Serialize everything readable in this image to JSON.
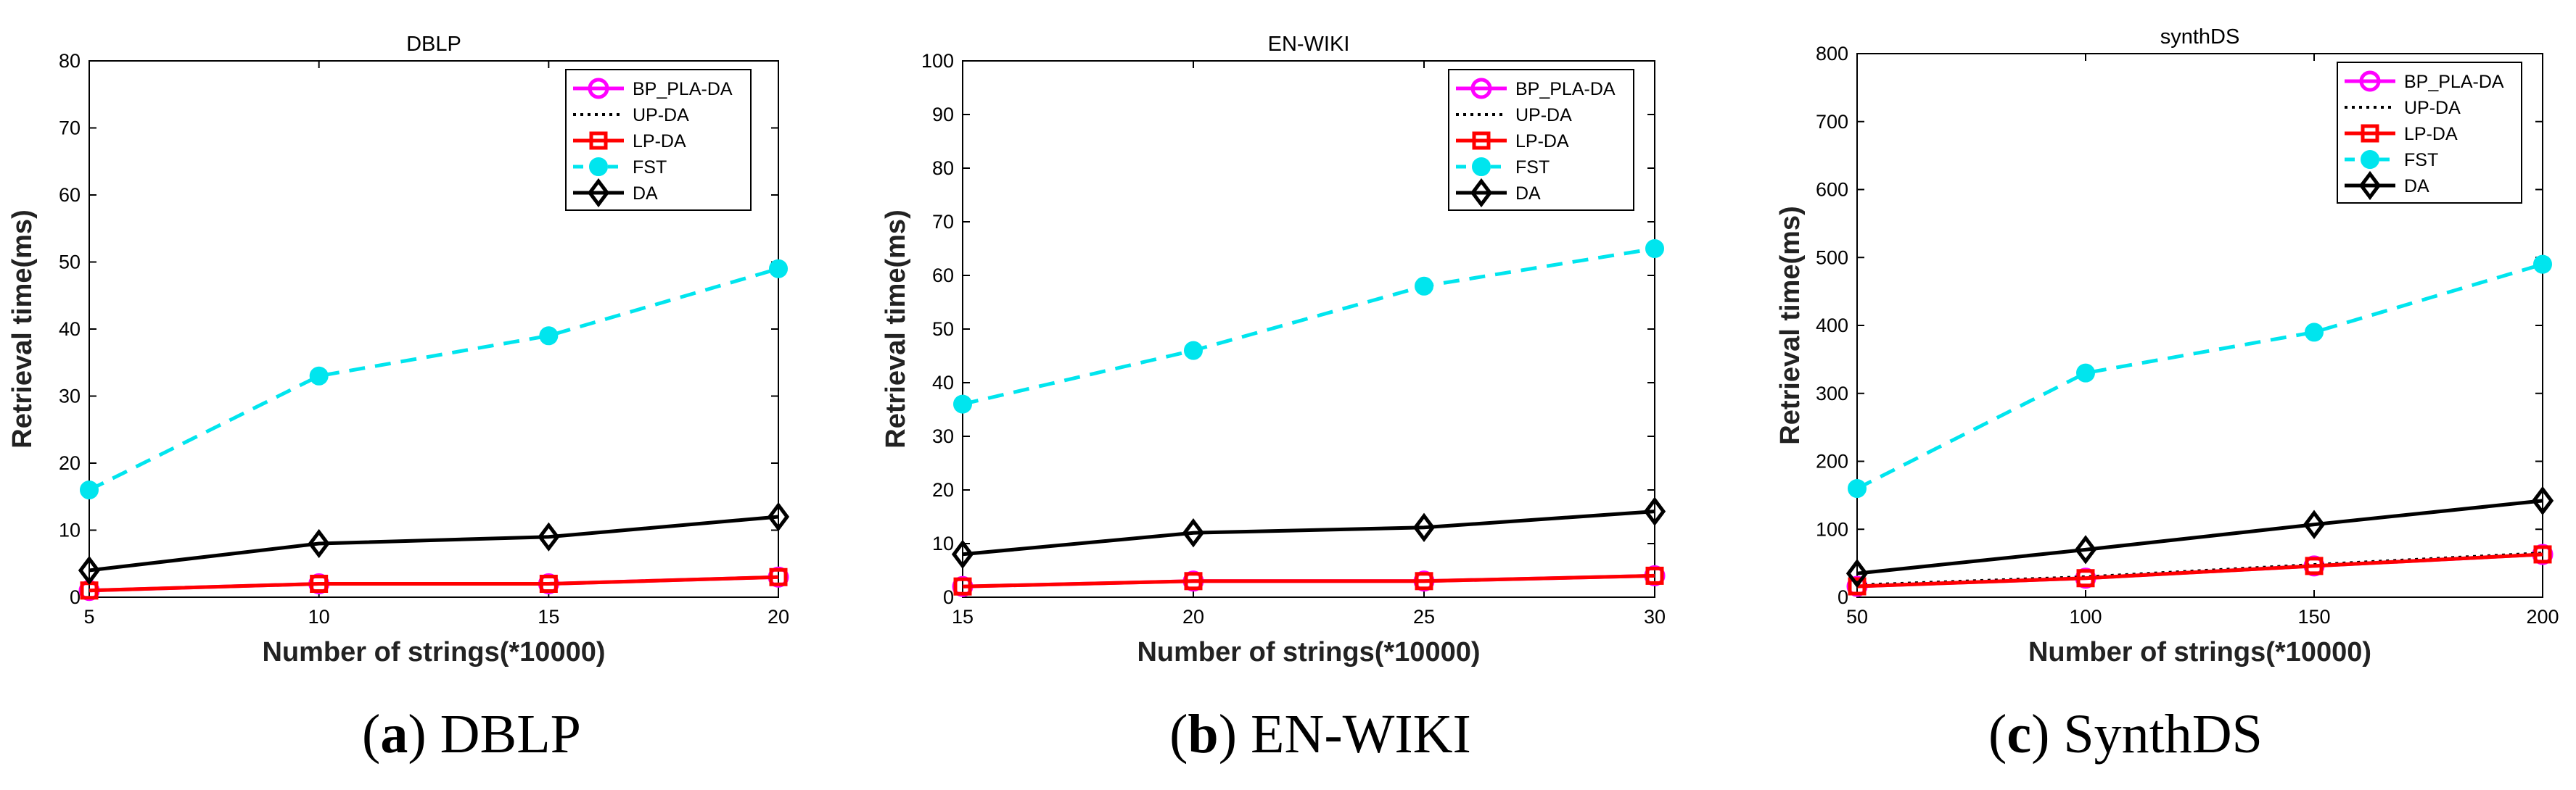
{
  "figure": {
    "panels": [
      {
        "letter": "a",
        "name": "DBLP"
      },
      {
        "letter": "b",
        "name": "EN-WIKI"
      },
      {
        "letter": "c",
        "name": "SynthDS"
      }
    ]
  },
  "chart_data": [
    {
      "type": "line",
      "title": "DBLP",
      "xlabel": "Number of strings(*10000)",
      "ylabel": "Retrieval time(ms)",
      "x": [
        5,
        10,
        15,
        20
      ],
      "xlim": [
        5,
        20
      ],
      "ylim": [
        0,
        80
      ],
      "xticks": [
        5,
        10,
        15,
        20
      ],
      "yticks": [
        0,
        10,
        20,
        30,
        40,
        50,
        60,
        70,
        80
      ],
      "legend_position": "top-right",
      "series": [
        {
          "name": "BP_PLA-DA",
          "values": [
            1,
            2,
            2,
            3
          ],
          "color": "#ff00ff",
          "style": "solid",
          "marker": "circle"
        },
        {
          "name": "UP-DA",
          "values": [
            1,
            2,
            2,
            3
          ],
          "color": "#000000",
          "style": "dotted",
          "marker": "none"
        },
        {
          "name": "LP-DA",
          "values": [
            1,
            2,
            2,
            3
          ],
          "color": "#ff0000",
          "style": "solid",
          "marker": "square"
        },
        {
          "name": "FST",
          "values": [
            16,
            33,
            39,
            49
          ],
          "color": "#00e5ee",
          "style": "dashed",
          "marker": "dot"
        },
        {
          "name": "DA",
          "values": [
            4,
            8,
            9,
            12
          ],
          "color": "#000000",
          "style": "solid",
          "marker": "diamond"
        }
      ]
    },
    {
      "type": "line",
      "title": "EN-WIKI",
      "xlabel": "Number of strings(*10000)",
      "ylabel": "Retrieval time(ms)",
      "x": [
        15,
        20,
        25,
        30
      ],
      "xlim": [
        15,
        30
      ],
      "ylim": [
        0,
        100
      ],
      "xticks": [
        15,
        20,
        25,
        30
      ],
      "yticks": [
        0,
        10,
        20,
        30,
        40,
        50,
        60,
        70,
        80,
        90,
        100
      ],
      "legend_position": "top-right",
      "series": [
        {
          "name": "BP_PLA-DA",
          "values": [
            2,
            3,
            3,
            4
          ],
          "color": "#ff00ff",
          "style": "solid",
          "marker": "circle"
        },
        {
          "name": "UP-DA",
          "values": [
            2,
            3,
            3,
            4
          ],
          "color": "#000000",
          "style": "dotted",
          "marker": "none"
        },
        {
          "name": "LP-DA",
          "values": [
            2,
            3,
            3,
            4
          ],
          "color": "#ff0000",
          "style": "solid",
          "marker": "square"
        },
        {
          "name": "FST",
          "values": [
            36,
            46,
            58,
            65
          ],
          "color": "#00e5ee",
          "style": "dashed",
          "marker": "dot"
        },
        {
          "name": "DA",
          "values": [
            8,
            12,
            13,
            16
          ],
          "color": "#000000",
          "style": "solid",
          "marker": "diamond"
        }
      ]
    },
    {
      "type": "line",
      "title": "synthDS",
      "xlabel": "Number of strings(*10000)",
      "ylabel": "Retrieval time(ms)",
      "x": [
        50,
        100,
        150,
        200
      ],
      "xlim": [
        50,
        200
      ],
      "ylim": [
        0,
        800
      ],
      "xticks": [
        50,
        100,
        150,
        200
      ],
      "yticks": [
        0,
        100,
        200,
        300,
        400,
        500,
        600,
        700,
        800
      ],
      "legend_position": "top-right",
      "series": [
        {
          "name": "BP_PLA-DA",
          "values": [
            16,
            28,
            46,
            63
          ],
          "color": "#ff00ff",
          "style": "solid",
          "marker": "circle"
        },
        {
          "name": "UP-DA",
          "values": [
            18,
            30,
            48,
            65
          ],
          "color": "#000000",
          "style": "dotted",
          "marker": "none"
        },
        {
          "name": "LP-DA",
          "values": [
            16,
            28,
            46,
            63
          ],
          "color": "#ff0000",
          "style": "solid",
          "marker": "square"
        },
        {
          "name": "FST",
          "values": [
            160,
            330,
            390,
            490
          ],
          "color": "#00e5ee",
          "style": "dashed",
          "marker": "dot"
        },
        {
          "name": "DA",
          "values": [
            35,
            70,
            107,
            142
          ],
          "color": "#000000",
          "style": "solid",
          "marker": "diamond"
        }
      ]
    }
  ]
}
